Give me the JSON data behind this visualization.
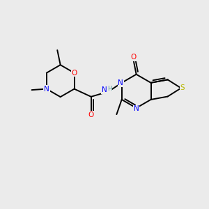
{
  "bg_color": "#ebebeb",
  "atom_colors": {
    "C": "#000000",
    "N": "#0000ff",
    "O": "#ff0000",
    "S": "#b8b800",
    "H": "#5f9ea0"
  },
  "bond_color": "#000000",
  "bond_width": 1.4,
  "fig_size": [
    3.0,
    3.0
  ],
  "dpi": 100
}
